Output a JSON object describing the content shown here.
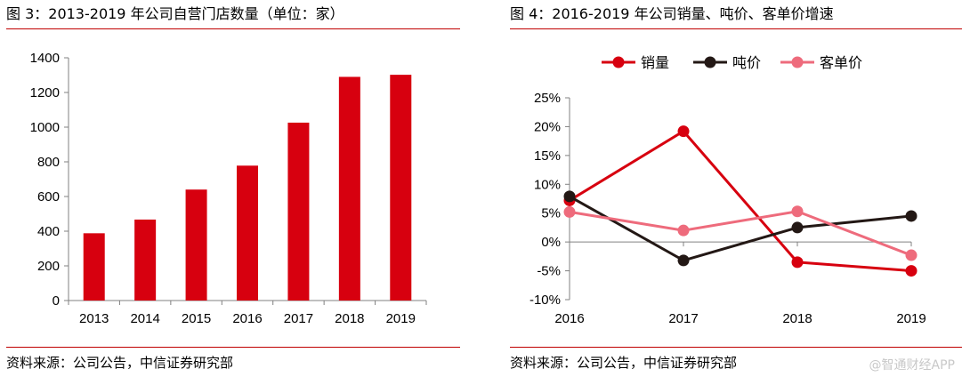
{
  "figure3": {
    "title": "图 3：2013-2019 年公司自营门店数量（单位：家）",
    "source": "资料来源：公司公告，中信证券研究部"
  },
  "figure4": {
    "title": "图 4：2016-2019 年公司销量、吨价、客单价增速",
    "source": "资料来源：公司公告，中信证券研究部"
  },
  "watermark": "@智通财经APP",
  "chart_data": [
    {
      "type": "bar",
      "title": "图 3：2013-2019 年公司自营门店数量（单位：家）",
      "categories": [
        "2013",
        "2014",
        "2015",
        "2016",
        "2017",
        "2018",
        "2019"
      ],
      "values": [
        388,
        467,
        640,
        778,
        1026,
        1290,
        1302
      ],
      "ylim": [
        0,
        1400
      ],
      "yticks": [
        "0",
        "200",
        "400",
        "600",
        "800",
        "1000",
        "1200",
        "1400"
      ],
      "ytick_values": [
        0,
        200,
        400,
        600,
        800,
        1000,
        1200,
        1400
      ],
      "grid": false,
      "color": "#d7000f",
      "xlabel": "",
      "ylabel": ""
    },
    {
      "type": "line",
      "title": "图 4：2016-2019 年公司销量、吨价、客单价增速",
      "x": [
        "2016",
        "2017",
        "2018",
        "2019"
      ],
      "series": [
        {
          "name": "销量",
          "color": "#d7000f",
          "values": [
            7.2,
            19.2,
            -3.5,
            -5.0
          ]
        },
        {
          "name": "吨价",
          "color": "#231815",
          "values": [
            7.9,
            -3.2,
            2.5,
            4.5
          ]
        },
        {
          "name": "客单价",
          "color": "#ee6b7c",
          "values": [
            5.2,
            2.0,
            5.3,
            -2.3
          ]
        }
      ],
      "ylim": [
        -10,
        25
      ],
      "yticks": [
        "-10%",
        "-5%",
        "0%",
        "5%",
        "10%",
        "15%",
        "20%",
        "25%"
      ],
      "ytick_values": [
        -10,
        -5,
        0,
        5,
        10,
        15,
        20,
        25
      ],
      "legend_position": "top",
      "grid": false,
      "xlabel": "",
      "ylabel": ""
    }
  ]
}
